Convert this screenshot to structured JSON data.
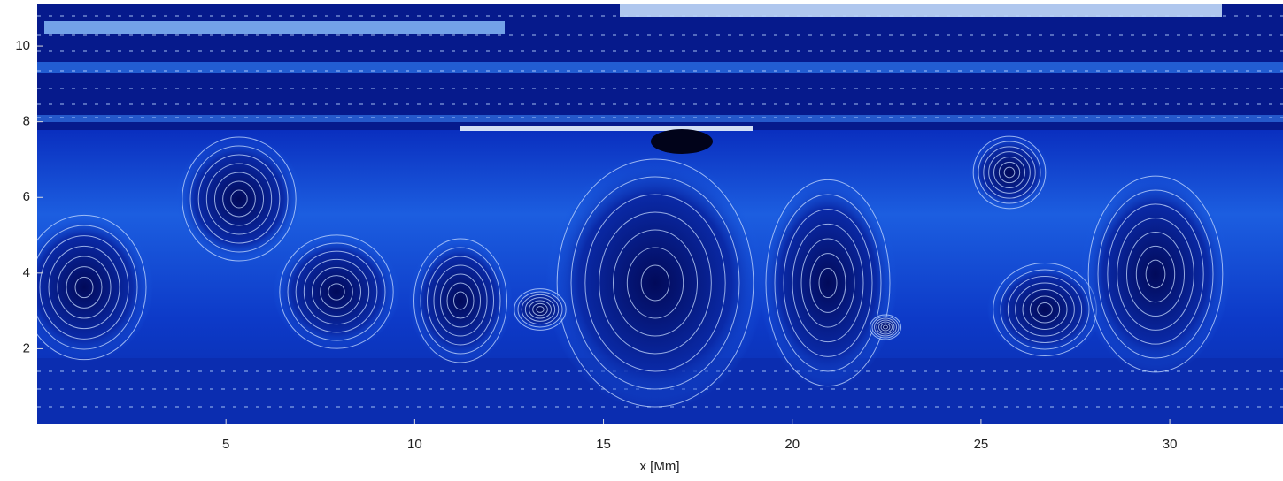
{
  "chart_data": {
    "type": "heatmap",
    "xlabel": "x [Mm]",
    "xlim": [
      0,
      33
    ],
    "ylim": [
      0,
      11.1
    ],
    "xticks": [
      5,
      10,
      15,
      20,
      25,
      30
    ],
    "yticks": [
      2,
      4,
      6,
      8,
      10
    ]
  }
}
